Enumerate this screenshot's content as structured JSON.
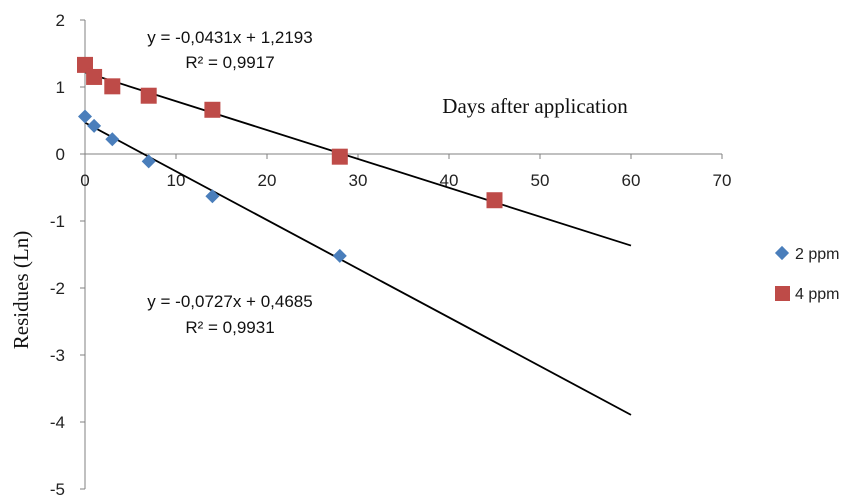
{
  "chart_data": {
    "type": "scatter",
    "title": "",
    "xlabel": "Days after application",
    "ylabel": "Residues (Ln)",
    "xlim": [
      0,
      70
    ],
    "ylim": [
      -5,
      2
    ],
    "xticks": [
      "0",
      "10",
      "20",
      "30",
      "40",
      "50",
      "60",
      "70"
    ],
    "yticks": [
      "2",
      "1",
      "0",
      "-1",
      "-2",
      "-3",
      "-4",
      "-5"
    ],
    "grid": false,
    "legend_position": "right",
    "series": [
      {
        "name": "2 ppm",
        "marker": "diamond",
        "color": "#4a7ebb",
        "points": [
          {
            "x": 0,
            "y": 0.56
          },
          {
            "x": 1,
            "y": 0.42
          },
          {
            "x": 3,
            "y": 0.22
          },
          {
            "x": 7,
            "y": -0.11
          },
          {
            "x": 14,
            "y": -0.63
          },
          {
            "x": 28,
            "y": -1.52
          }
        ],
        "trendline": {
          "slope": -0.0727,
          "intercept": 0.4685,
          "x_range": [
            0,
            60
          ]
        },
        "equation": "y = -0,0727x + 0,4685",
        "r2": "R² = 0,9931"
      },
      {
        "name": "4 ppm",
        "marker": "square",
        "color": "#be4b48",
        "points": [
          {
            "x": 0,
            "y": 1.33
          },
          {
            "x": 1,
            "y": 1.15
          },
          {
            "x": 3,
            "y": 1.01
          },
          {
            "x": 7,
            "y": 0.87
          },
          {
            "x": 14,
            "y": 0.66
          },
          {
            "x": 28,
            "y": -0.04
          },
          {
            "x": 45,
            "y": -0.69
          }
        ],
        "trendline": {
          "slope": -0.0431,
          "intercept": 1.2193,
          "x_range": [
            0,
            60
          ]
        },
        "equation": "y = -0,0431x + 1,2193",
        "r2": "R² = 0,9917"
      }
    ]
  }
}
